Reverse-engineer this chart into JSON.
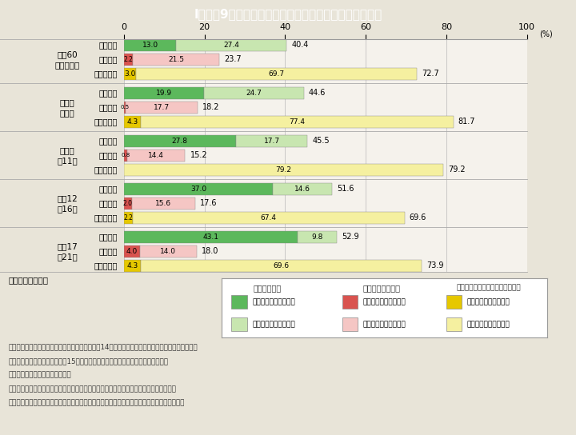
{
  "title": "I－特－9図　出産前有職者の就業形態別妻の就業継続率",
  "title_bg": "#4db8c8",
  "bg_color": "#e8e4d8",
  "chart_bg": "#f5f2ec",
  "periods": [
    {
      "label_line1": "昭和60",
      "label_line2": "〜平成元年"
    },
    {
      "label_line1": "平成２",
      "label_line2": "〜６年"
    },
    {
      "label_line1": "平成７",
      "label_line2": "〜11年"
    },
    {
      "label_line1": "平成12",
      "label_line2": "〜16年"
    },
    {
      "label_line1": "平成17",
      "label_line2": "〜21年"
    }
  ],
  "data": [
    [
      {
        "label": "正規職員",
        "seg1": 13.0,
        "seg2": 27.4,
        "total": 40.4
      },
      {
        "label": "パート等",
        "seg1": 2.2,
        "seg2": 21.5,
        "total": 23.7
      },
      {
        "label": "自営業主等",
        "seg1": 3.0,
        "seg2": 69.7,
        "total": 72.7
      }
    ],
    [
      {
        "label": "正規職員",
        "seg1": 19.9,
        "seg2": 24.7,
        "total": 44.6
      },
      {
        "label": "パート等",
        "seg1": 0.5,
        "seg2": 17.7,
        "total": 18.2
      },
      {
        "label": "自営業主等",
        "seg1": 4.3,
        "seg2": 77.4,
        "total": 81.7
      }
    ],
    [
      {
        "label": "正規職員",
        "seg1": 27.8,
        "seg2": 17.7,
        "total": 45.5
      },
      {
        "label": "パート等",
        "seg1": 0.8,
        "seg2": 14.4,
        "total": 15.2
      },
      {
        "label": "自営業主等",
        "seg1": 0.0,
        "seg2": 79.2,
        "total": 79.2
      }
    ],
    [
      {
        "label": "正規職員",
        "seg1": 37.0,
        "seg2": 14.6,
        "total": 51.6
      },
      {
        "label": "パート等",
        "seg1": 2.0,
        "seg2": 15.6,
        "total": 17.6
      },
      {
        "label": "自営業主等",
        "seg1": 2.2,
        "seg2": 67.4,
        "total": 69.6
      }
    ],
    [
      {
        "label": "正規職員",
        "seg1": 43.1,
        "seg2": 9.8,
        "total": 52.9
      },
      {
        "label": "パート等",
        "seg1": 4.0,
        "seg2": 14.0,
        "total": 18.0
      },
      {
        "label": "自営業主等",
        "seg1": 4.3,
        "seg2": 69.6,
        "total": 73.9
      }
    ]
  ],
  "colors": {
    "seishain_seg1": "#5cb85c",
    "seishain_seg2": "#c8e6b0",
    "part_seg1": "#d9534f",
    "part_seg2": "#f5c6c4",
    "jiei_seg1": "#e6c800",
    "jiei_seg2": "#f5f0a0"
  },
  "xlim": [
    0,
    100
  ],
  "xticks": [
    0,
    20,
    40,
    60,
    80,
    100
  ],
  "legend_title1": "〈正規職員〉",
  "legend_title2": "〈パート・派遣〉",
  "legend_title3": "〈自営業種・家族従業者・内職〉",
  "period_label": "（第１子出生年）",
  "notes": [
    "（備考）１．国立社会保障・人口問題研究所「第14回出生動向基本調査（夫婦調査）」より作成。",
    "　　　　２．第１子が１歳以上15歳未満の子を持つ初婚どうし夫婦について集計。",
    "　　　　３．出産前後の就業経歴",
    "　　　　　　就業継続（育休利用）－妊娠判明時就業〜育児休業取得〜子ども１歳時就業",
    "　　　　　　就業継続（育休なし）－妊娠判明時就業〜育児休業取得なし〜子ども１歳時就業"
  ]
}
